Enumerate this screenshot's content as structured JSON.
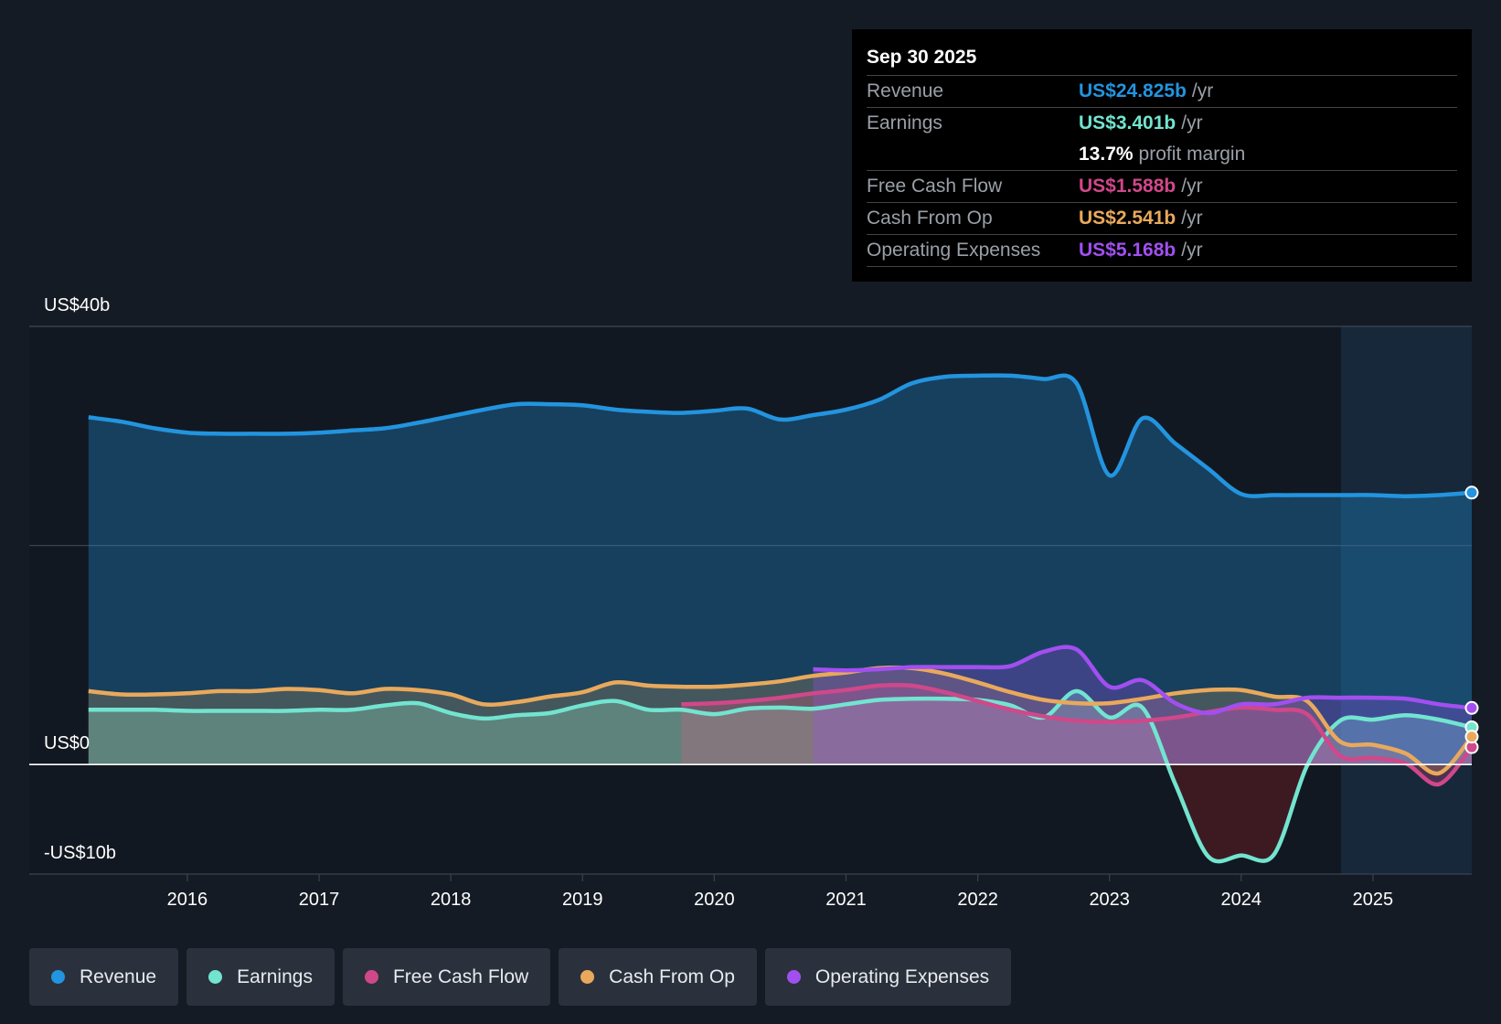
{
  "chart_data": {
    "type": "line",
    "x": [
      2015.25,
      2015.5,
      2015.75,
      2016,
      2016.25,
      2016.5,
      2016.75,
      2017,
      2017.25,
      2017.5,
      2017.75,
      2018,
      2018.25,
      2018.5,
      2018.75,
      2019,
      2019.25,
      2019.5,
      2019.75,
      2020,
      2020.25,
      2020.5,
      2020.75,
      2021,
      2021.25,
      2021.5,
      2021.75,
      2022,
      2022.25,
      2022.5,
      2022.75,
      2023,
      2023.25,
      2023.5,
      2023.75,
      2024,
      2024.25,
      2024.5,
      2024.75,
      2025,
      2025.25,
      2025.5,
      2025.75
    ],
    "series": [
      {
        "name": "Revenue",
        "color": "#2394df",
        "values": [
          31.7,
          31.3,
          30.7,
          30.3,
          30.2,
          30.2,
          30.2,
          30.3,
          30.5,
          30.7,
          31.2,
          31.8,
          32.4,
          32.9,
          32.9,
          32.8,
          32.4,
          32.2,
          32.1,
          32.3,
          32.5,
          31.5,
          31.9,
          32.4,
          33.3,
          34.8,
          35.4,
          35.5,
          35.5,
          35.2,
          34.8,
          26.4,
          31.6,
          29.3,
          27.0,
          24.7,
          24.6,
          24.6,
          24.6,
          24.6,
          24.5,
          24.6,
          24.825
        ]
      },
      {
        "name": "Earnings",
        "color": "#72e4d0",
        "values": [
          5.0,
          5.0,
          5.0,
          4.9,
          4.9,
          4.9,
          4.9,
          5.0,
          5.0,
          5.4,
          5.6,
          4.7,
          4.2,
          4.5,
          4.7,
          5.4,
          5.8,
          5.0,
          5.0,
          4.6,
          5.1,
          5.2,
          5.1,
          5.5,
          5.9,
          6.0,
          6.0,
          5.9,
          5.4,
          4.3,
          6.7,
          4.3,
          5.2,
          -1.8,
          -8.4,
          -8.3,
          -8.2,
          -0.1,
          4.0,
          4.1,
          4.5,
          4.1,
          3.401
        ]
      },
      {
        "name": "Free Cash Flow",
        "color": "#d0488a",
        "values": [
          null,
          null,
          null,
          null,
          null,
          null,
          null,
          null,
          null,
          null,
          null,
          null,
          null,
          null,
          null,
          null,
          null,
          null,
          5.5,
          5.6,
          5.8,
          6.1,
          6.5,
          6.8,
          7.2,
          7.2,
          6.6,
          5.8,
          5.0,
          4.4,
          4.0,
          3.9,
          4.0,
          4.3,
          4.8,
          5.2,
          5.0,
          4.6,
          0.8,
          0.6,
          0.1,
          -1.8,
          1.588
        ]
      },
      {
        "name": "Cash From Op",
        "color": "#e9a95c",
        "values": [
          6.7,
          6.4,
          6.4,
          6.5,
          6.7,
          6.7,
          6.9,
          6.8,
          6.5,
          6.9,
          6.8,
          6.4,
          5.5,
          5.7,
          6.2,
          6.6,
          7.5,
          7.2,
          7.1,
          7.1,
          7.3,
          7.6,
          8.1,
          8.4,
          8.8,
          8.8,
          8.3,
          7.5,
          6.6,
          5.9,
          5.6,
          5.6,
          6.0,
          6.5,
          6.8,
          6.8,
          6.2,
          5.8,
          2.1,
          1.8,
          1.0,
          -0.8,
          2.541
        ]
      },
      {
        "name": "Operating Expenses",
        "color": "#a24ff0",
        "values": [
          null,
          null,
          null,
          null,
          null,
          null,
          null,
          null,
          null,
          null,
          null,
          null,
          null,
          null,
          null,
          null,
          null,
          null,
          null,
          null,
          null,
          null,
          8.7,
          8.6,
          8.7,
          8.9,
          8.9,
          8.9,
          9.0,
          10.3,
          10.5,
          7.1,
          7.7,
          5.6,
          4.7,
          5.5,
          5.5,
          6.1,
          6.1,
          6.1,
          6.0,
          5.5,
          5.168
        ]
      }
    ],
    "xlim": [
      2014.8,
      2025.75
    ],
    "xticks": [
      2016,
      2017,
      2018,
      2019,
      2020,
      2021,
      2022,
      2023,
      2024,
      2025
    ],
    "ylim": [
      -10,
      40
    ],
    "yticks": [
      {
        "value": -10,
        "label": "-US$10b"
      },
      {
        "value": 0,
        "label": "US$0"
      },
      {
        "value": 40,
        "label": "US$40b"
      }
    ],
    "ygrid": [
      20,
      40
    ],
    "tooltip": {
      "date": "Sep 30 2025",
      "rows": [
        {
          "label": "Revenue",
          "value": "US$24.825b",
          "unit": "/yr",
          "color": "#2394df"
        },
        {
          "label": "Earnings",
          "value": "US$3.401b",
          "unit": "/yr",
          "color": "#72e4d0"
        },
        {
          "value": "13.7%",
          "unit": "profit margin",
          "color": "#ffffff"
        },
        {
          "label": "Free Cash Flow",
          "value": "US$1.588b",
          "unit": "/yr",
          "color": "#d0488a"
        },
        {
          "label": "Cash From Op",
          "value": "US$2.541b",
          "unit": "/yr",
          "color": "#e9a95c"
        },
        {
          "label": "Operating Expenses",
          "value": "US$5.168b",
          "unit": "/yr",
          "color": "#a24ff0"
        }
      ]
    }
  }
}
